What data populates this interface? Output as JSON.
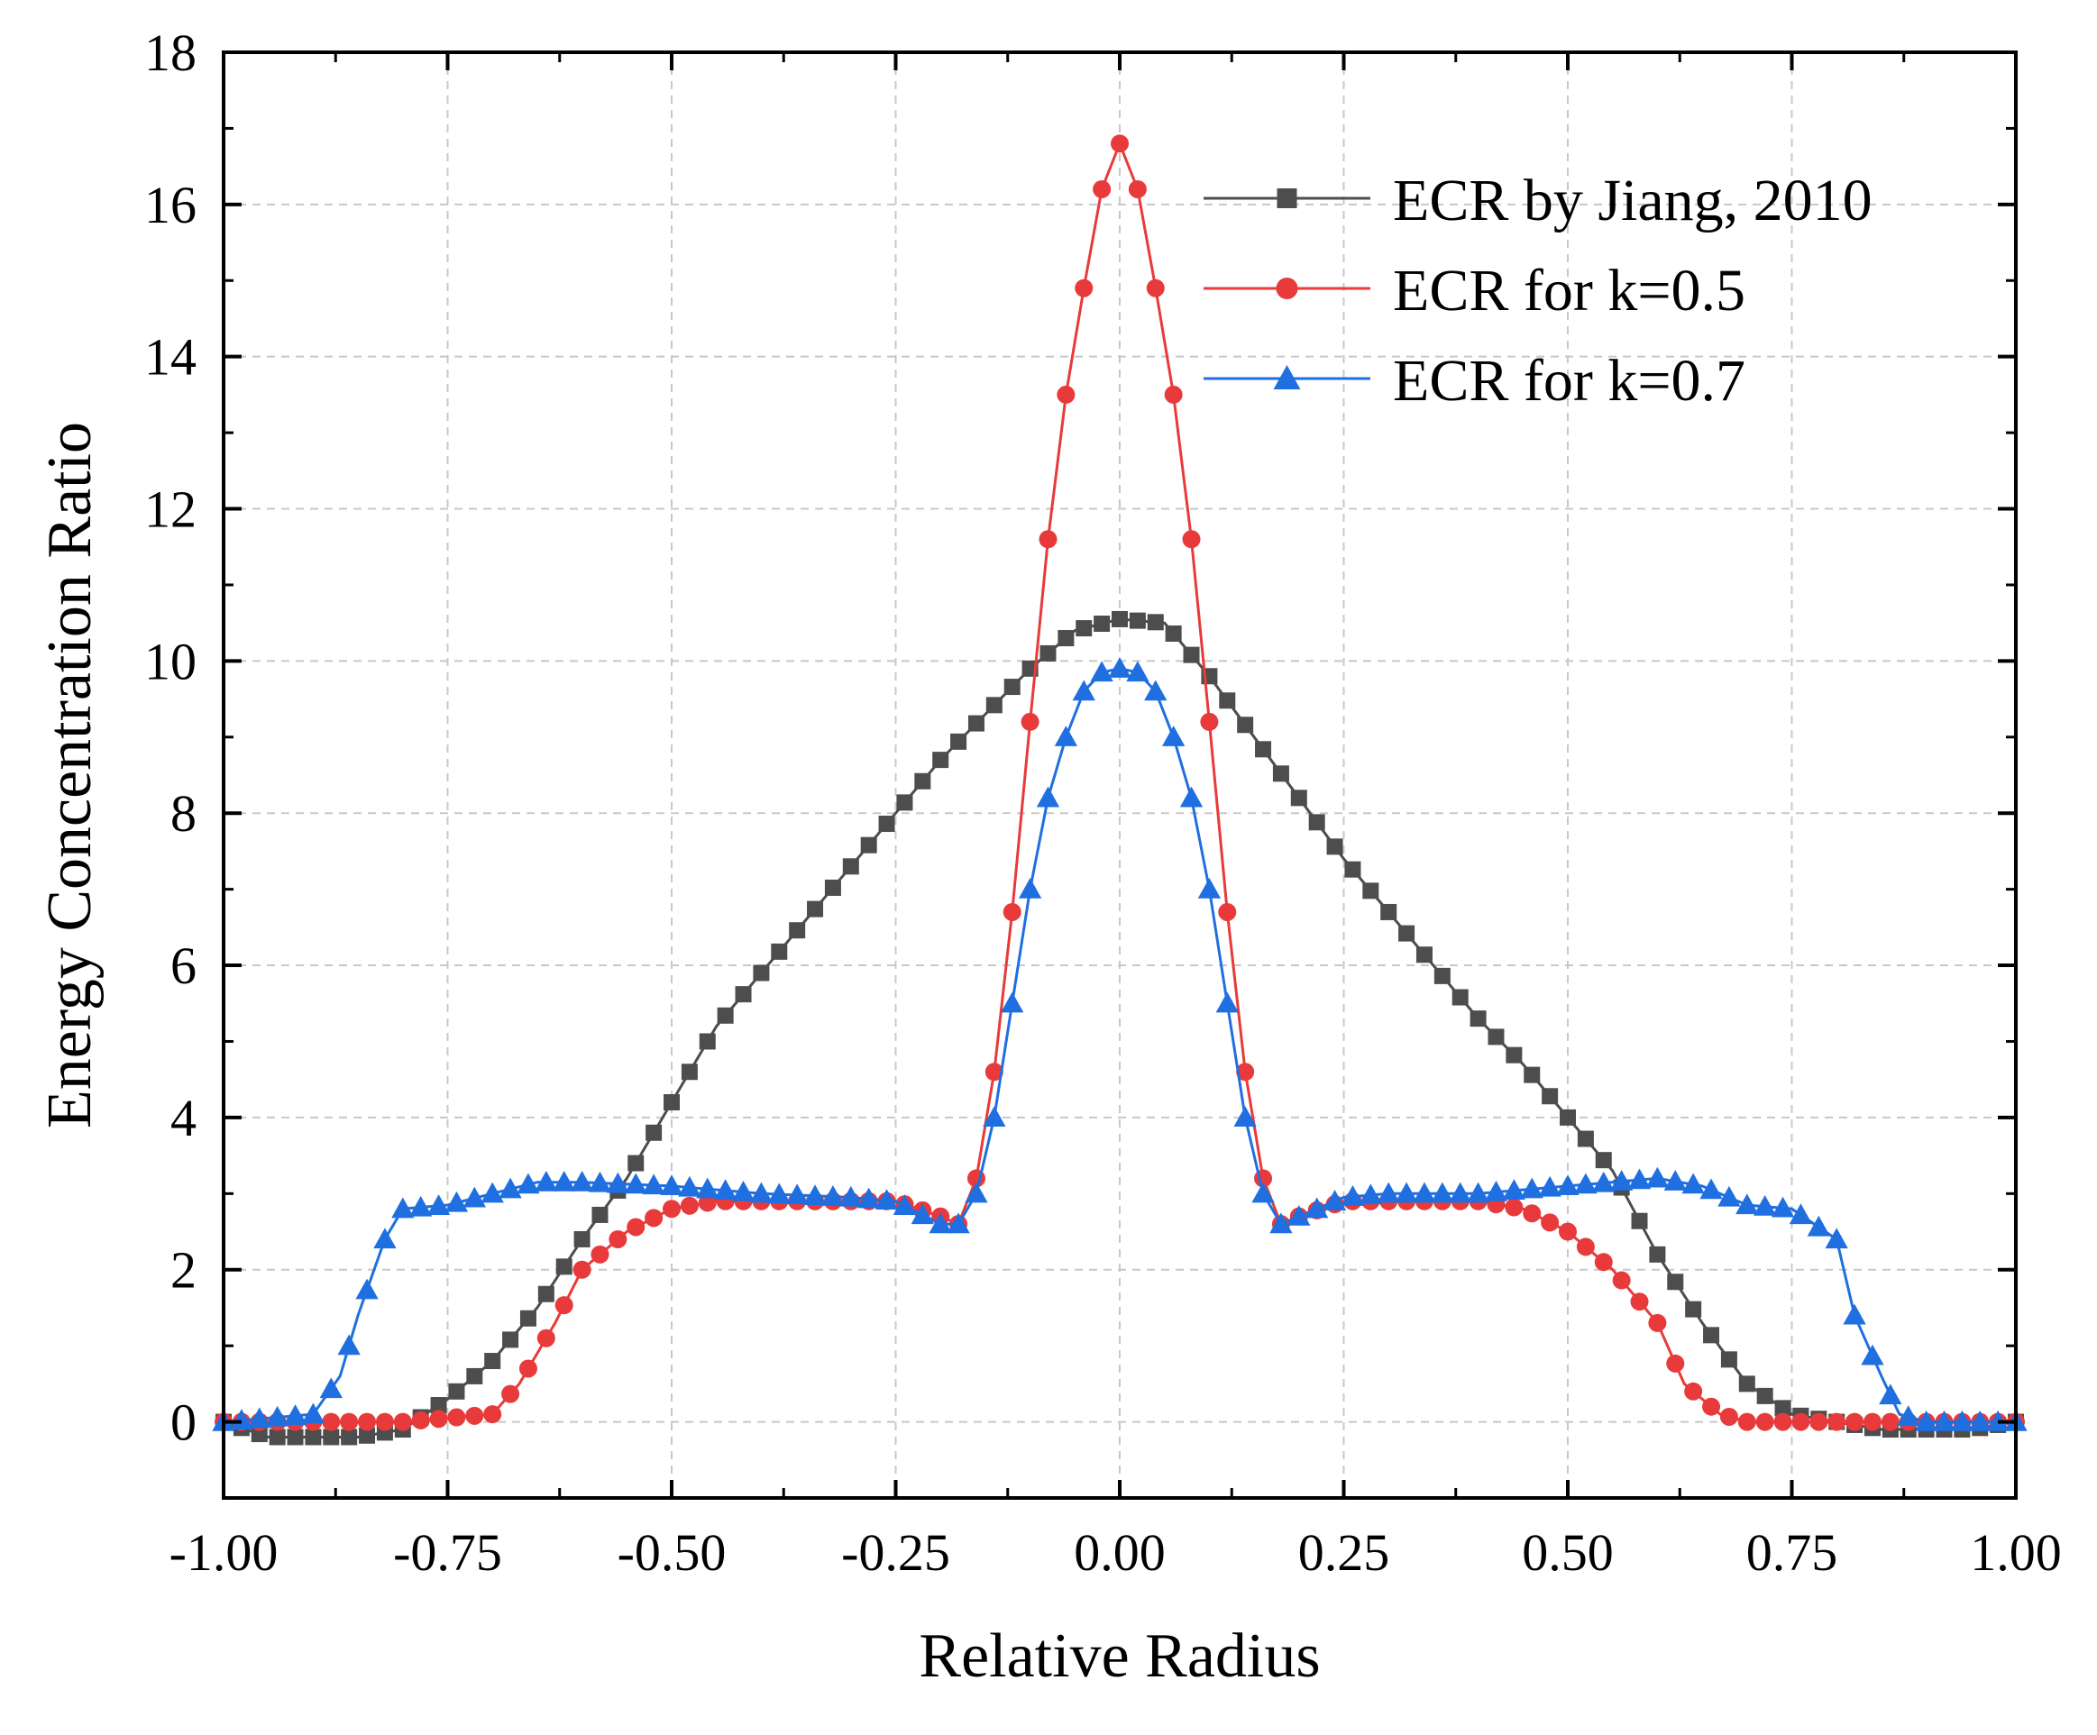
{
  "chart_data": {
    "type": "line",
    "title": "",
    "xlabel": "Relative Radius",
    "ylabel": "Energy Concentration Ratio",
    "xlim": [
      -1.0,
      1.0
    ],
    "ylim": [
      -1.0,
      18.0
    ],
    "x_ticks": [
      -1.0,
      -0.75,
      -0.5,
      -0.25,
      0.0,
      0.25,
      0.5,
      0.75,
      1.0
    ],
    "x_tick_labels": [
      "-1.00",
      "-0.75",
      "-0.50",
      "-0.25",
      "0.00",
      "0.25",
      "0.50",
      "0.75",
      "1.00"
    ],
    "y_ticks": [
      0,
      2,
      4,
      6,
      8,
      10,
      12,
      14,
      16,
      18
    ],
    "y_tick_labels": [
      "0",
      "2",
      "4",
      "6",
      "8",
      "10",
      "12",
      "14",
      "16",
      "18"
    ],
    "grid": true,
    "legend_position": "top-right",
    "series": [
      {
        "name": "ECR by Jiang, 2010",
        "color": "#4d4d4d",
        "marker": "square",
        "x": [
          -1.0,
          -0.95,
          -0.9,
          -0.85,
          -0.8,
          -0.75,
          -0.7,
          -0.65,
          -0.6,
          -0.55,
          -0.5,
          -0.45,
          -0.4,
          -0.35,
          -0.3,
          -0.25,
          -0.2,
          -0.15,
          -0.1,
          -0.05,
          0.0,
          0.05,
          0.1,
          0.15,
          0.2,
          0.25,
          0.3,
          0.35,
          0.4,
          0.45,
          0.5,
          0.55,
          0.6,
          0.65,
          0.7,
          0.75,
          0.8,
          0.85,
          0.9,
          0.95,
          1.0
        ],
        "y": [
          0.0,
          -0.2,
          -0.2,
          -0.2,
          -0.1,
          0.3,
          0.8,
          1.5,
          2.4,
          3.2,
          4.2,
          5.2,
          5.9,
          6.6,
          7.3,
          8.0,
          8.7,
          9.3,
          9.9,
          10.4,
          10.55,
          10.5,
          9.8,
          9.0,
          8.2,
          7.4,
          6.7,
          6.0,
          5.3,
          4.7,
          4.0,
          3.3,
          2.2,
          1.3,
          0.5,
          0.1,
          0.0,
          -0.1,
          -0.1,
          -0.1,
          0.0
        ]
      },
      {
        "name": "ECR for k=0.5",
        "color": "#e83a3a",
        "marker": "circle",
        "x": [
          -1.0,
          -0.9,
          -0.8,
          -0.7,
          -0.67,
          -0.63,
          -0.6,
          -0.55,
          -0.5,
          -0.45,
          -0.4,
          -0.3,
          -0.25,
          -0.2,
          -0.18,
          -0.16,
          -0.14,
          -0.12,
          -0.1,
          -0.08,
          -0.06,
          -0.04,
          -0.02,
          0.0,
          0.02,
          0.04,
          0.06,
          0.08,
          0.1,
          0.12,
          0.14,
          0.16,
          0.18,
          0.2,
          0.25,
          0.3,
          0.4,
          0.45,
          0.5,
          0.55,
          0.6,
          0.63,
          0.67,
          0.7,
          0.8,
          0.9,
          1.0
        ],
        "y": [
          0.0,
          0.0,
          0.0,
          0.1,
          0.5,
          1.3,
          2.0,
          2.5,
          2.8,
          2.9,
          2.9,
          2.9,
          2.9,
          2.7,
          2.6,
          3.2,
          4.6,
          6.7,
          9.2,
          11.6,
          13.5,
          14.9,
          16.2,
          16.8,
          16.2,
          14.9,
          13.5,
          11.6,
          9.2,
          6.7,
          4.6,
          3.2,
          2.6,
          2.7,
          2.9,
          2.9,
          2.9,
          2.8,
          2.5,
          2.0,
          1.3,
          0.5,
          0.1,
          0.0,
          0.0,
          0.0,
          0.0
        ]
      },
      {
        "name": "ECR for k=0.7",
        "color": "#1f6fe0",
        "marker": "triangle",
        "x": [
          -1.0,
          -0.9,
          -0.87,
          -0.85,
          -0.82,
          -0.8,
          -0.75,
          -0.7,
          -0.65,
          -0.6,
          -0.5,
          -0.4,
          -0.3,
          -0.25,
          -0.2,
          -0.18,
          -0.16,
          -0.14,
          -0.12,
          -0.1,
          -0.08,
          -0.06,
          -0.04,
          -0.02,
          0.0,
          0.02,
          0.04,
          0.06,
          0.08,
          0.1,
          0.12,
          0.14,
          0.16,
          0.18,
          0.2,
          0.25,
          0.3,
          0.4,
          0.5,
          0.6,
          0.65,
          0.7,
          0.75,
          0.8,
          0.82,
          0.85,
          0.87,
          0.9,
          1.0
        ],
        "y": [
          0.0,
          0.1,
          0.6,
          1.4,
          2.4,
          2.8,
          2.85,
          3.0,
          3.15,
          3.15,
          3.1,
          3.0,
          2.95,
          2.9,
          2.6,
          2.6,
          3.0,
          4.0,
          5.5,
          7.0,
          8.2,
          9.0,
          9.6,
          9.85,
          9.9,
          9.85,
          9.6,
          9.0,
          8.2,
          7.0,
          5.5,
          4.0,
          3.0,
          2.6,
          2.7,
          2.95,
          3.0,
          3.0,
          3.1,
          3.2,
          3.1,
          2.85,
          2.8,
          2.4,
          1.4,
          0.6,
          0.1,
          0.0,
          0.0
        ]
      }
    ]
  }
}
